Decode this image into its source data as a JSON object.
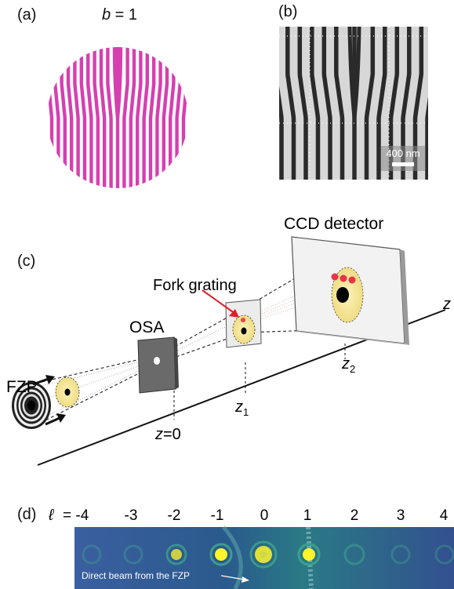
{
  "panel_a": {
    "label": "(a)",
    "b_var": "b",
    "b_eq": " = 1"
  },
  "panel_b": {
    "label": "(b)",
    "scalebar": "400 nm"
  },
  "panel_c": {
    "label": "(c)",
    "fzp": "FZP",
    "osa": "OSA",
    "fork_grating": "Fork grating",
    "ccd": "CCD detector",
    "z_axis": "z",
    "z0_var": "z",
    "z0_eq": "=0",
    "z1_var": "z",
    "z1_sub": "1",
    "z2_var": "z",
    "z2_sub": "2"
  },
  "panel_d": {
    "label": "(d)",
    "ell_symbol": "ℓ",
    "ell_values": [
      "= -4",
      "-3",
      "-2",
      "-1",
      "0",
      "1",
      "2",
      "3",
      "4"
    ],
    "annotation": "Direct beam from the FZP"
  },
  "colors": {
    "magenta": "#d63fb0",
    "yellow_disc": "#f3e79a",
    "red_spot": "#e8334a",
    "strip_bg": "#2e4f8e"
  }
}
